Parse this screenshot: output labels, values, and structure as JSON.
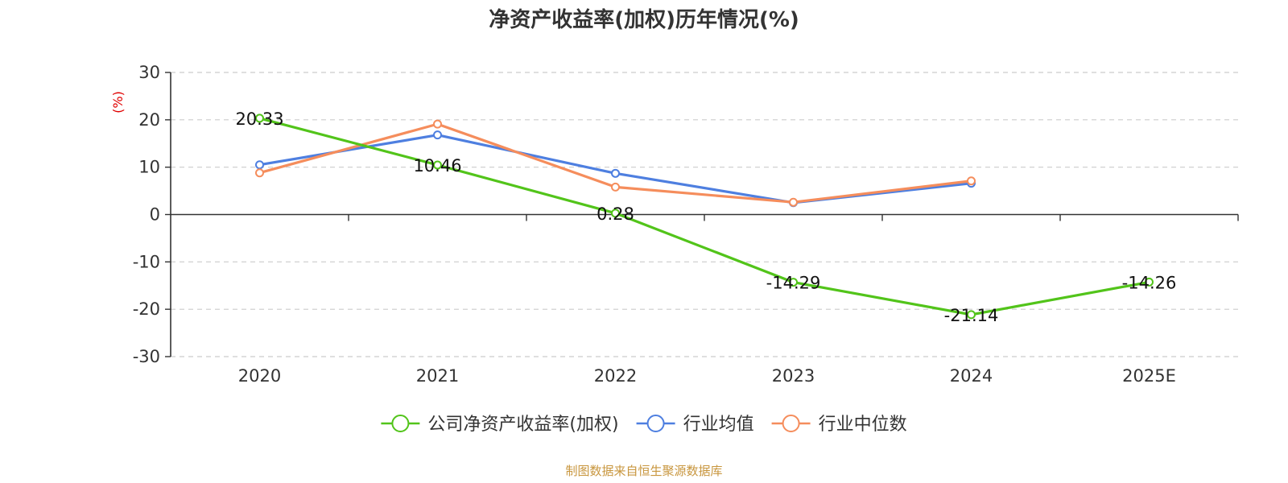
{
  "chart_data": {
    "type": "line",
    "title": "净资产收益率(加权)历年情况(%)",
    "ylabel": "(%)",
    "xlabel": "",
    "categories": [
      "2020",
      "2021",
      "2022",
      "2023",
      "2024",
      "2025E"
    ],
    "ylim": [
      -30,
      30
    ],
    "yticks": [
      30,
      20,
      10,
      0,
      -10,
      -20,
      -30
    ],
    "yticks_labels": [
      "30",
      "20",
      "10",
      "0",
      "-10",
      "-20",
      "-30"
    ],
    "grid": true,
    "legend_position": "bottom-center",
    "series": [
      {
        "name": "公司净资产收益率(加权)",
        "color": "#52c41a",
        "values": [
          20.33,
          10.46,
          0.28,
          -14.29,
          -21.14,
          -14.26
        ],
        "data_labels": [
          "20.33",
          "10.46",
          "0.28",
          "-14.29",
          "-21.14",
          "-14.26"
        ]
      },
      {
        "name": "行业均值",
        "color": "#4e7fe0",
        "values": [
          10.5,
          16.8,
          8.7,
          2.5,
          6.6,
          null
        ]
      },
      {
        "name": "行业中位数",
        "color": "#f58d5c",
        "values": [
          8.8,
          19.1,
          5.8,
          2.6,
          7.1,
          null
        ]
      }
    ],
    "source": "制图数据来自恒生聚源数据库",
    "colors": {
      "ylabel": "#e00000",
      "source": "#c8963e",
      "axis": "#333333",
      "grid": "#cccccc"
    }
  }
}
